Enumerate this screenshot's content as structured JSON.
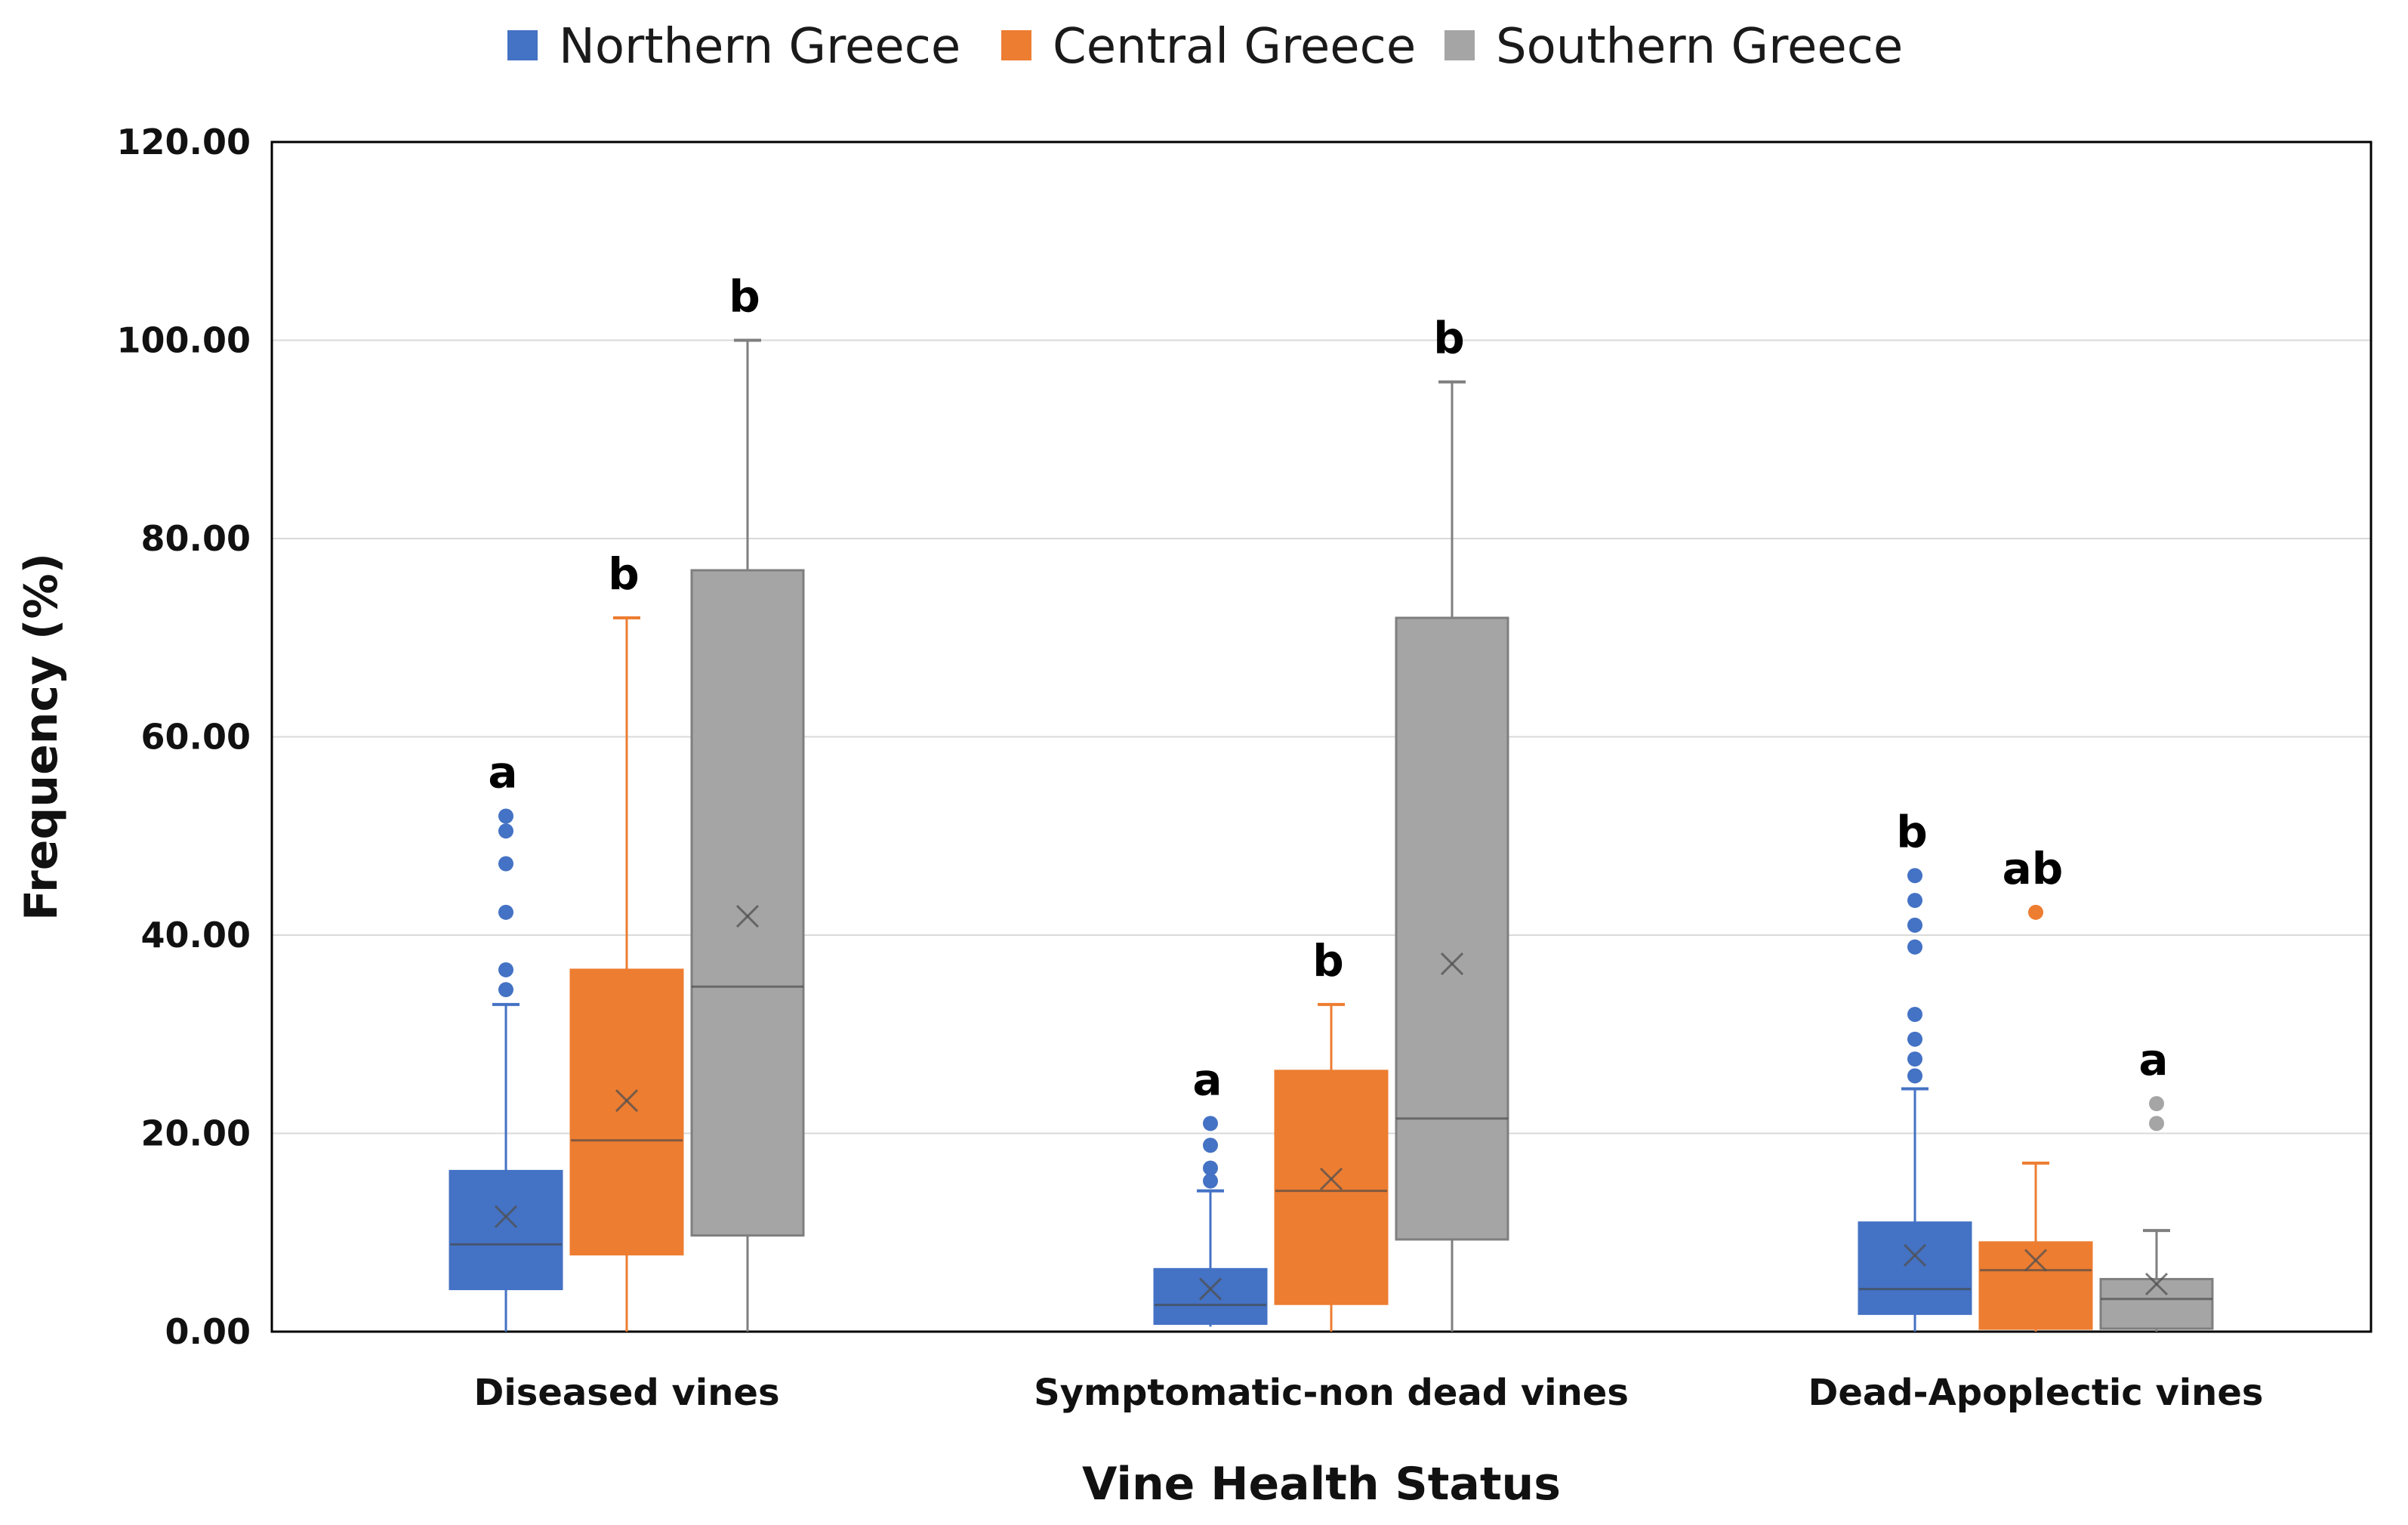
{
  "chart_data": {
    "type": "box",
    "xlabel": "Vine Health Status",
    "ylabel": "Frequency (%)",
    "ylim": [
      0,
      120
    ],
    "yticks": [
      "0.00",
      "20.00",
      "40.00",
      "60.00",
      "80.00",
      "100.00",
      "120.00"
    ],
    "grid": true,
    "legend_position": "top-center",
    "categories": [
      "Diseased vines",
      "Symptomatic-non dead vines",
      "Dead-Apoplectic vines"
    ],
    "series": [
      {
        "name": "Northern Greece",
        "color": "#4472c4",
        "boxes": [
          {
            "min": 0,
            "q1": 4.3,
            "median": 8.8,
            "q3": 16.2,
            "max": 33,
            "mean": 11.6,
            "outliers": [
              34.5,
              36.5,
              42.3,
              47.2,
              50.5,
              52
            ],
            "letter": "a"
          },
          {
            "min": 0.5,
            "q1": 0.8,
            "median": 2.7,
            "q3": 6.3,
            "max": 14.2,
            "mean": 4.3,
            "outliers": [
              15.2,
              16.5,
              18.8,
              21
            ],
            "letter": "a"
          },
          {
            "min": 0,
            "q1": 1.8,
            "median": 4.3,
            "q3": 11,
            "max": 24.5,
            "mean": 7.7,
            "outliers": [
              25.8,
              27.5,
              29.5,
              32,
              38.8,
              41,
              43.5,
              46
            ],
            "letter": "b"
          }
        ]
      },
      {
        "name": "Central Greece",
        "color": "#ed7d31",
        "boxes": [
          {
            "min": 0,
            "q1": 7.8,
            "median": 19.3,
            "q3": 36.5,
            "max": 72,
            "mean": 23.3,
            "outliers": [],
            "letter": "b"
          },
          {
            "min": 0,
            "q1": 2.8,
            "median": 14.2,
            "q3": 26.3,
            "max": 33,
            "mean": 15.4,
            "outliers": [],
            "letter": "b"
          },
          {
            "min": 0,
            "q1": 0.3,
            "median": 6.2,
            "q3": 9,
            "max": 17,
            "mean": 7.2,
            "outliers": [
              42.3
            ],
            "letter": "ab"
          }
        ]
      },
      {
        "name": "Southern Greece",
        "color": "#a5a5a5",
        "boxes": [
          {
            "min": 0,
            "q1": 9.7,
            "median": 34.8,
            "q3": 76.8,
            "max": 100,
            "mean": 41.9,
            "outliers": [],
            "letter": "b"
          },
          {
            "min": 0,
            "q1": 9.3,
            "median": 21.5,
            "q3": 72,
            "max": 95.8,
            "mean": 37.1,
            "outliers": [],
            "letter": "b"
          },
          {
            "min": 0,
            "q1": 0.3,
            "median": 3.3,
            "q3": 5.3,
            "max": 10.2,
            "mean": 4.8,
            "outliers": [
              21,
              23
            ],
            "letter": "a"
          }
        ]
      }
    ]
  }
}
